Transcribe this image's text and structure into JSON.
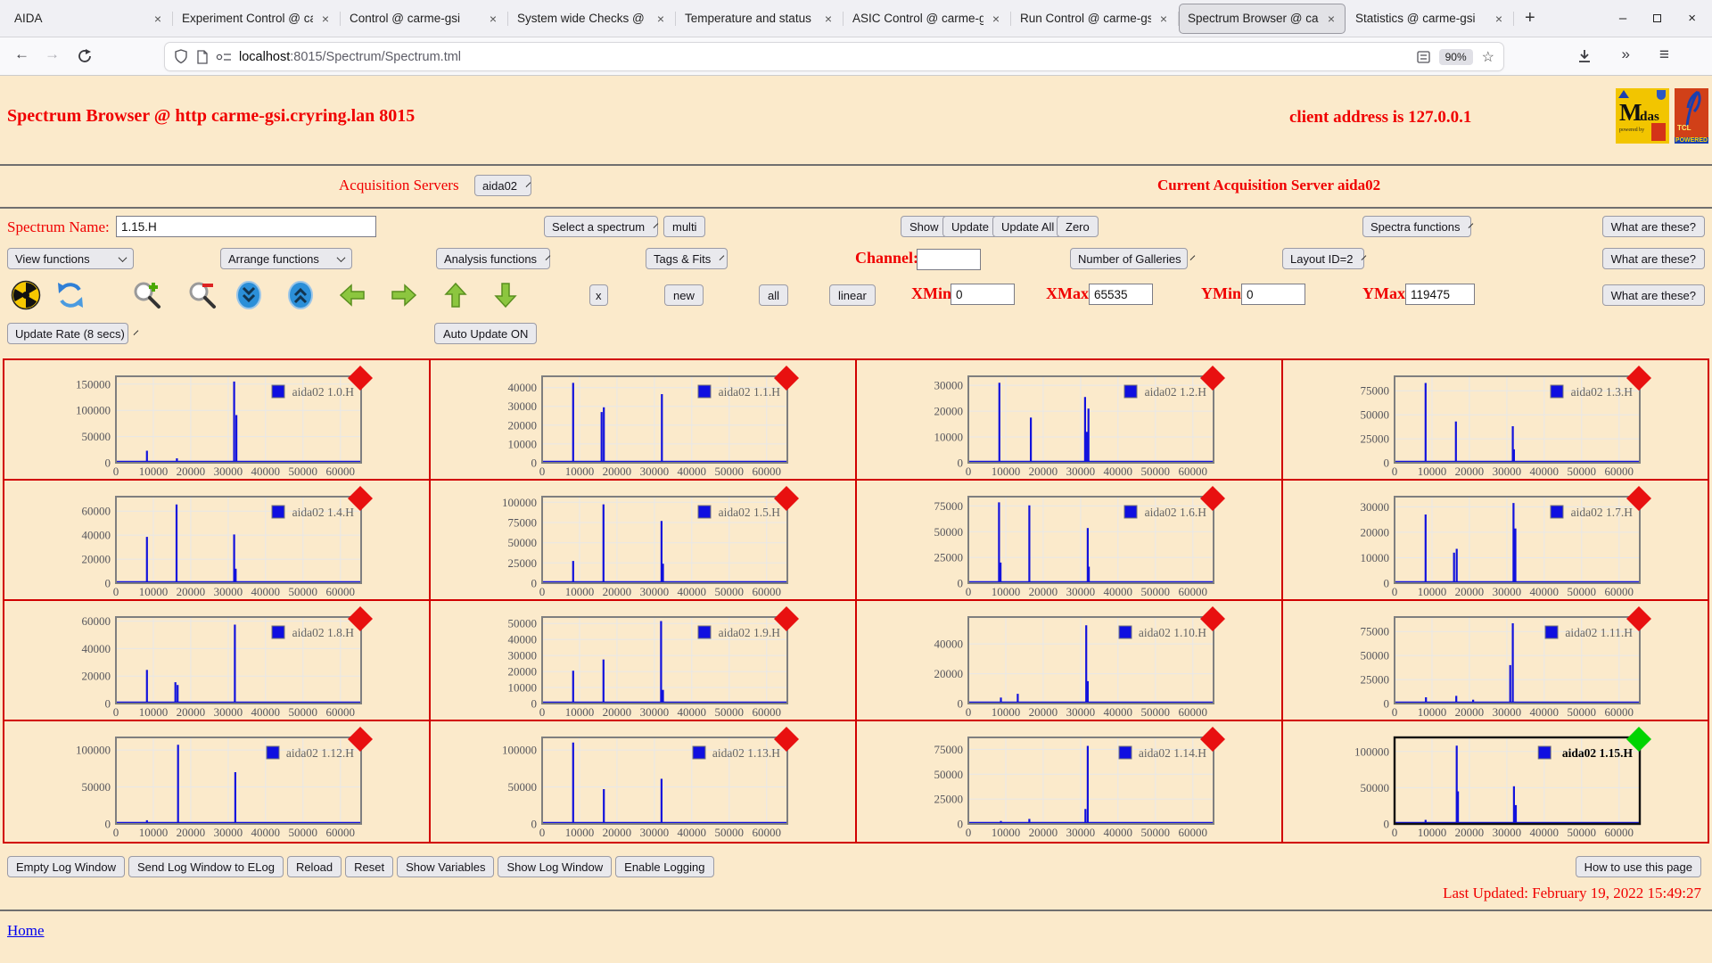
{
  "browser": {
    "tabs": [
      {
        "label": "AIDA",
        "active": false
      },
      {
        "label": "Experiment Control @ ca",
        "active": false
      },
      {
        "label": "Control @ carme-gsi",
        "active": false
      },
      {
        "label": "System wide Checks @ c",
        "active": false
      },
      {
        "label": "Temperature and status",
        "active": false
      },
      {
        "label": "ASIC Control @ carme-g",
        "active": false
      },
      {
        "label": "Run Control @ carme-gs",
        "active": false
      },
      {
        "label": "Spectrum Browser @ ca",
        "active": true
      },
      {
        "label": "Statistics @ carme-gsi",
        "active": false
      }
    ],
    "new_tab_label": "+",
    "close_tab_label": "×",
    "window": {
      "minimize": "–",
      "close": "×"
    },
    "nav": {
      "back": "←",
      "forward": "→"
    },
    "url": {
      "host": "localhost",
      "path": ":8015/Spectrum/Spectrum.tml",
      "zoom_level": "90%",
      "star": "☆"
    },
    "toolbar": {
      "overflow": "»",
      "menu": "≡"
    }
  },
  "header": {
    "title": "Spectrum Browser @ http carme-gsi.cryring.lan 8015",
    "client_address": "client address is 127.0.0.1",
    "midas_m": "M",
    "midas_rest": "idas",
    "midas_sub": "powered by",
    "tcl_text": "TCL",
    "tcl_sub": "POWERED"
  },
  "acquisition": {
    "label": "Acquisition Servers",
    "server": "aida02",
    "current": "Current Acquisition Server aida02"
  },
  "controls": {
    "spectrum_name_label": "Spectrum Name:",
    "spectrum_name_value": "1.15.H",
    "select_spectrum": "Select a spectrum",
    "multi": "multi",
    "show": "Show",
    "update": "Update",
    "update_all": "Update All",
    "zero": "Zero",
    "spectra_functions": "Spectra functions",
    "what_are_these": "What are these?",
    "view_functions": "View functions",
    "arrange_functions": "Arrange functions",
    "analysis_functions": "Analysis functions",
    "tags_fits": "Tags & Fits",
    "channel_label": "Channel:",
    "channel_value": "",
    "number_of_galleries": "Number of Galleries",
    "layout_id": "Layout ID=2",
    "x_btn": "x",
    "new_btn": "new",
    "all_btn": "all",
    "linear_btn": "linear",
    "xmin_label": "XMin",
    "xmin_value": "0",
    "xmax_label": "XMax",
    "xmax_value": "65535",
    "ymin_label": "YMin",
    "ymin_value": "0",
    "ymax_label": "YMax",
    "ymax_value": "119475",
    "update_rate": "Update Rate (8 secs)",
    "auto_update": "Auto Update ON",
    "icon_names": [
      "radiation-icon",
      "refresh-icon",
      "zoom-in-icon",
      "zoom-out-icon",
      "scroll-down-icon",
      "scroll-up-icon",
      "prev-arrow-icon",
      "next-arrow-icon",
      "raise-arrow-icon",
      "lower-arrow-icon"
    ]
  },
  "footer": {
    "buttons": [
      "Empty Log Window",
      "Send Log Window to ELog",
      "Reload",
      "Reset",
      "Show Variables",
      "Show Log Window",
      "Enable Logging"
    ],
    "how_to": "How to use this page",
    "last_updated": "Last Updated: February 19, 2022 15:49:27",
    "home": "Home"
  },
  "colors": {
    "page_bg": "#fbeacb",
    "accent_red": "#f00000",
    "grid_red": "#d10000",
    "spectrum_blue": "#1212dd",
    "marker_red": "#e81010",
    "marker_green": "#00d400"
  },
  "chart_data": {
    "type": "line",
    "x_range": [
      0,
      65535
    ],
    "x_ticks": [
      0,
      10000,
      20000,
      30000,
      40000,
      50000,
      60000
    ],
    "grid": true,
    "legend_position": "top-right",
    "charts": [
      {
        "name": "aida02 1.0.H",
        "y_max": 165000,
        "y_ticks": [
          0,
          50000,
          100000,
          150000
        ],
        "selected": false,
        "spikes": [
          [
            8300,
            23000
          ],
          [
            16300,
            8500
          ],
          [
            31600,
            155000
          ],
          [
            32200,
            91000
          ]
        ]
      },
      {
        "name": "aida02 1.1.H",
        "y_max": 46000,
        "y_ticks": [
          0,
          10000,
          20000,
          30000,
          40000
        ],
        "selected": false,
        "spikes": [
          [
            8300,
            42500
          ],
          [
            15900,
            27000
          ],
          [
            16500,
            29500
          ],
          [
            32000,
            36500
          ]
        ]
      },
      {
        "name": "aida02 1.2.H",
        "y_max": 33500,
        "y_ticks": [
          0,
          10000,
          20000,
          30000
        ],
        "selected": false,
        "spikes": [
          [
            8300,
            31000
          ],
          [
            16700,
            17500
          ],
          [
            31200,
            25500
          ],
          [
            32100,
            21000
          ],
          [
            31700,
            12000
          ]
        ]
      },
      {
        "name": "aida02 1.3.H",
        "y_max": 90000,
        "y_ticks": [
          0,
          25000,
          50000,
          75000
        ],
        "selected": false,
        "spikes": [
          [
            8300,
            83000
          ],
          [
            16400,
            43000
          ],
          [
            31600,
            38000
          ],
          [
            31900,
            14000
          ]
        ]
      },
      {
        "name": "aida02 1.4.H",
        "y_max": 72000,
        "y_ticks": [
          0,
          20000,
          40000,
          60000
        ],
        "selected": false,
        "spikes": [
          [
            8300,
            38500
          ],
          [
            16200,
            65500
          ],
          [
            31600,
            40500
          ],
          [
            32000,
            12000
          ]
        ]
      },
      {
        "name": "aida02 1.5.H",
        "y_max": 107000,
        "y_ticks": [
          0,
          25000,
          50000,
          75000,
          100000
        ],
        "selected": false,
        "spikes": [
          [
            8300,
            27500
          ],
          [
            16400,
            97500
          ],
          [
            31900,
            77000
          ],
          [
            32300,
            24000
          ]
        ]
      },
      {
        "name": "aida02 1.6.H",
        "y_max": 84000,
        "y_ticks": [
          0,
          25000,
          50000,
          75000
        ],
        "selected": false,
        "spikes": [
          [
            8200,
            78500
          ],
          [
            8600,
            20000
          ],
          [
            16300,
            75500
          ],
          [
            31900,
            53500
          ],
          [
            32200,
            16000
          ]
        ]
      },
      {
        "name": "aida02 1.7.H",
        "y_max": 34000,
        "y_ticks": [
          0,
          10000,
          20000,
          30000
        ],
        "selected": false,
        "spikes": [
          [
            8300,
            27000
          ],
          [
            15900,
            12000
          ],
          [
            16600,
            13500
          ],
          [
            31800,
            31500
          ],
          [
            32300,
            21500
          ]
        ]
      },
      {
        "name": "aida02 1.8.H",
        "y_max": 63000,
        "y_ticks": [
          0,
          20000,
          40000,
          60000
        ],
        "selected": false,
        "spikes": [
          [
            8300,
            24500
          ],
          [
            15900,
            15500
          ],
          [
            16500,
            13500
          ],
          [
            31800,
            57500
          ]
        ]
      },
      {
        "name": "aida02 1.9.H",
        "y_max": 54000,
        "y_ticks": [
          0,
          10000,
          20000,
          30000,
          40000,
          50000
        ],
        "selected": false,
        "spikes": [
          [
            8300,
            20500
          ],
          [
            16400,
            27500
          ],
          [
            31800,
            51500
          ],
          [
            32300,
            8500
          ]
        ]
      },
      {
        "name": "aida02 1.10.H",
        "y_max": 58000,
        "y_ticks": [
          0,
          20000,
          40000
        ],
        "selected": false,
        "spikes": [
          [
            8700,
            4000
          ],
          [
            13200,
            6500
          ],
          [
            31500,
            52500
          ],
          [
            31900,
            15000
          ]
        ]
      },
      {
        "name": "aida02 1.11.H",
        "y_max": 90000,
        "y_ticks": [
          0,
          25000,
          50000,
          75000
        ],
        "selected": false,
        "spikes": [
          [
            8400,
            6500
          ],
          [
            16500,
            8000
          ],
          [
            21000,
            4000
          ],
          [
            30900,
            40000
          ],
          [
            31600,
            83500
          ]
        ]
      },
      {
        "name": "aida02 1.12.H",
        "y_max": 117000,
        "y_ticks": [
          0,
          50000,
          100000
        ],
        "selected": false,
        "spikes": [
          [
            8300,
            5000
          ],
          [
            16600,
            107000
          ],
          [
            31900,
            70000
          ]
        ]
      },
      {
        "name": "aida02 1.13.H",
        "y_max": 117000,
        "y_ticks": [
          0,
          50000,
          100000
        ],
        "selected": false,
        "spikes": [
          [
            8300,
            110000
          ],
          [
            16500,
            47000
          ],
          [
            31900,
            61000
          ]
        ]
      },
      {
        "name": "aida02 1.14.H",
        "y_max": 87000,
        "y_ticks": [
          0,
          25000,
          50000,
          75000
        ],
        "selected": false,
        "spikes": [
          [
            8700,
            3000
          ],
          [
            16300,
            5000
          ],
          [
            31300,
            15000
          ],
          [
            31900,
            78500
          ]
        ]
      },
      {
        "name": "aida02 1.15.H",
        "y_max": 119475,
        "y_ticks": [
          0,
          50000,
          100000
        ],
        "selected": true,
        "spikes": [
          [
            8300,
            5500
          ],
          [
            16600,
            108000
          ],
          [
            16950,
            45000
          ],
          [
            31900,
            52000
          ],
          [
            32400,
            26000
          ]
        ]
      }
    ]
  }
}
